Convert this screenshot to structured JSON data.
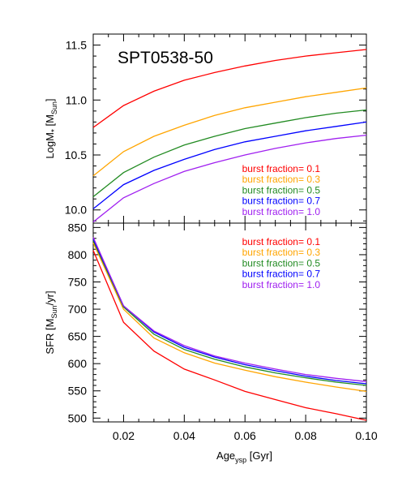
{
  "chart_data": [
    {
      "type": "line",
      "title": "SPT0538-50",
      "ylabel_main": "LogM",
      "ylabel_sub": "*",
      "ylabel_unit_prefix": " [M",
      "ylabel_unit_sub": "Sun",
      "ylabel_unit_suffix": "]",
      "xlim": [
        0.01,
        0.1
      ],
      "ylim": [
        9.88,
        11.6
      ],
      "yticks": [
        10.0,
        10.5,
        11.0,
        11.5
      ],
      "ytick_labels": [
        "10.0",
        "10.5",
        "11.0",
        "11.5"
      ],
      "legend_position": "bottom-right",
      "x": [
        0.01,
        0.02,
        0.03,
        0.04,
        0.05,
        0.06,
        0.07,
        0.08,
        0.09,
        0.1
      ],
      "series": [
        {
          "name": "burst fraction= 0.1",
          "color": "#ff0000",
          "values": [
            10.75,
            10.95,
            11.08,
            11.18,
            11.25,
            11.31,
            11.36,
            11.4,
            11.43,
            11.46
          ]
        },
        {
          "name": "burst fraction= 0.3",
          "color": "#ffa500",
          "values": [
            10.31,
            10.53,
            10.67,
            10.77,
            10.86,
            10.93,
            10.98,
            11.03,
            11.07,
            11.11
          ]
        },
        {
          "name": "burst fraction= 0.5",
          "color": "#228b22",
          "values": [
            10.12,
            10.34,
            10.48,
            10.59,
            10.67,
            10.74,
            10.79,
            10.84,
            10.88,
            10.91
          ]
        },
        {
          "name": "burst fraction= 0.7",
          "color": "#0000ff",
          "values": [
            10.01,
            10.23,
            10.36,
            10.46,
            10.55,
            10.62,
            10.67,
            10.72,
            10.76,
            10.8
          ]
        },
        {
          "name": "burst fraction= 1.0",
          "color": "#a020f0",
          "values": [
            9.89,
            10.11,
            10.24,
            10.35,
            10.43,
            10.5,
            10.56,
            10.61,
            10.65,
            10.68
          ]
        }
      ]
    },
    {
      "type": "line",
      "ylabel_main": "SFR",
      "ylabel_unit_prefix": "  [M",
      "ylabel_unit_sub": "Sun",
      "ylabel_unit_suffix": "/yr]",
      "xlabel_main": "Age",
      "xlabel_sub": "ysp",
      "xlabel_suffix": " [Gyr]",
      "xlim": [
        0.01,
        0.1
      ],
      "ylim": [
        493,
        858
      ],
      "xticks": [
        0.02,
        0.04,
        0.06,
        0.08,
        0.1
      ],
      "xtick_labels": [
        "0.02",
        "0.04",
        "0.06",
        "0.08",
        "0.10"
      ],
      "yticks": [
        500,
        550,
        600,
        650,
        700,
        750,
        800,
        850
      ],
      "ytick_labels": [
        "500",
        "550",
        "600",
        "650",
        "700",
        "750",
        "800",
        "850"
      ],
      "legend_position": "top-right",
      "x": [
        0.01,
        0.02,
        0.03,
        0.04,
        0.05,
        0.06,
        0.07,
        0.08,
        0.09,
        0.1
      ],
      "series": [
        {
          "name": "burst fraction= 0.1",
          "color": "#ff0000",
          "values": [
            808,
            676,
            623,
            590,
            570,
            549,
            534,
            519,
            508,
            496
          ]
        },
        {
          "name": "burst fraction= 0.3",
          "color": "#ffa500",
          "values": [
            822,
            700,
            647,
            620,
            601,
            588,
            576,
            566,
            557,
            549
          ]
        },
        {
          "name": "burst fraction= 0.5",
          "color": "#228b22",
          "values": [
            826,
            704,
            654,
            626,
            608,
            594,
            583,
            574,
            566,
            560
          ]
        },
        {
          "name": "burst fraction= 0.7",
          "color": "#0000ff",
          "values": [
            829,
            706,
            658,
            630,
            612,
            598,
            587,
            577,
            569,
            563
          ]
        },
        {
          "name": "burst fraction= 1.0",
          "color": "#a020f0",
          "values": [
            832,
            706,
            660,
            633,
            614,
            601,
            590,
            580,
            573,
            567
          ]
        }
      ]
    }
  ]
}
